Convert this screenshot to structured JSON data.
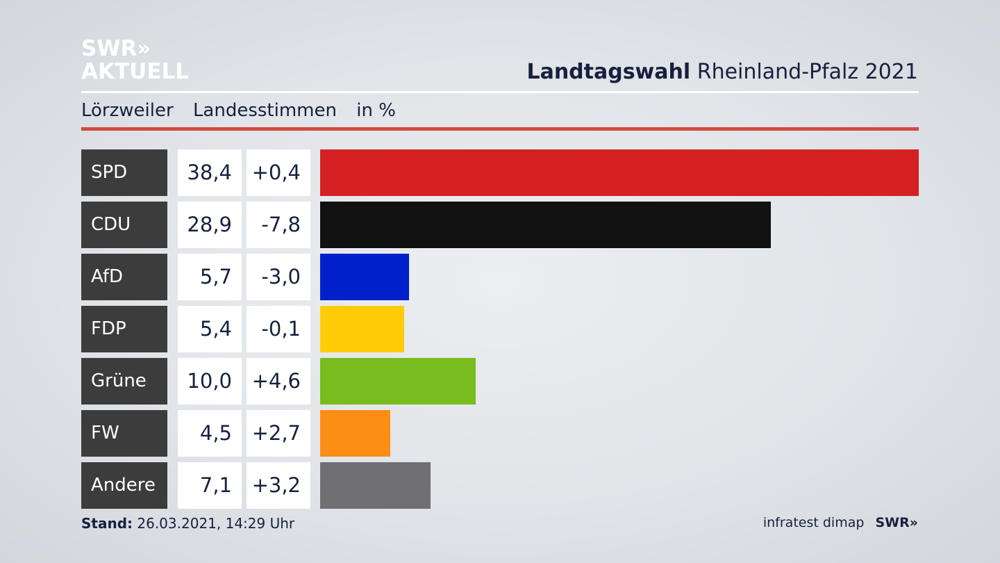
{
  "header": {
    "logo_line1": "SWR»",
    "logo_line2": "AKTUELL",
    "title_bold": "Landtagswahl",
    "title_rest": "Rheinland-Pfalz 2021"
  },
  "subheader": {
    "place": "Lörzweiler",
    "vote_type": "Landesstimmen",
    "unit": "in %"
  },
  "chart_data": {
    "type": "bar",
    "orientation": "horizontal",
    "categories": [
      "SPD",
      "CDU",
      "AfD",
      "FDP",
      "Grüne",
      "FW",
      "Andere"
    ],
    "series": [
      {
        "values": [
          38.4,
          28.9,
          5.7,
          5.4,
          10.0,
          4.5,
          7.1
        ]
      }
    ],
    "values_label": [
      "38,4",
      "28,9",
      "5,7",
      "5,4",
      "10,0",
      "4,5",
      "7,1"
    ],
    "change_label": [
      "+0,4",
      "-7,8",
      "-3,0",
      "-0,1",
      "+4,6",
      "+2,7",
      "+3,2"
    ],
    "colors": [
      "#d52121",
      "#111111",
      "#0020cc",
      "#ffcc07",
      "#79bc1d",
      "#fd8e15",
      "#707072"
    ],
    "xlim": [
      0,
      38.4
    ]
  },
  "footer": {
    "stand_label": "Stand:",
    "stand_value": "26.03.2021, 14:29 Uhr",
    "source": "infratest dimap",
    "brand": "SWR»"
  }
}
